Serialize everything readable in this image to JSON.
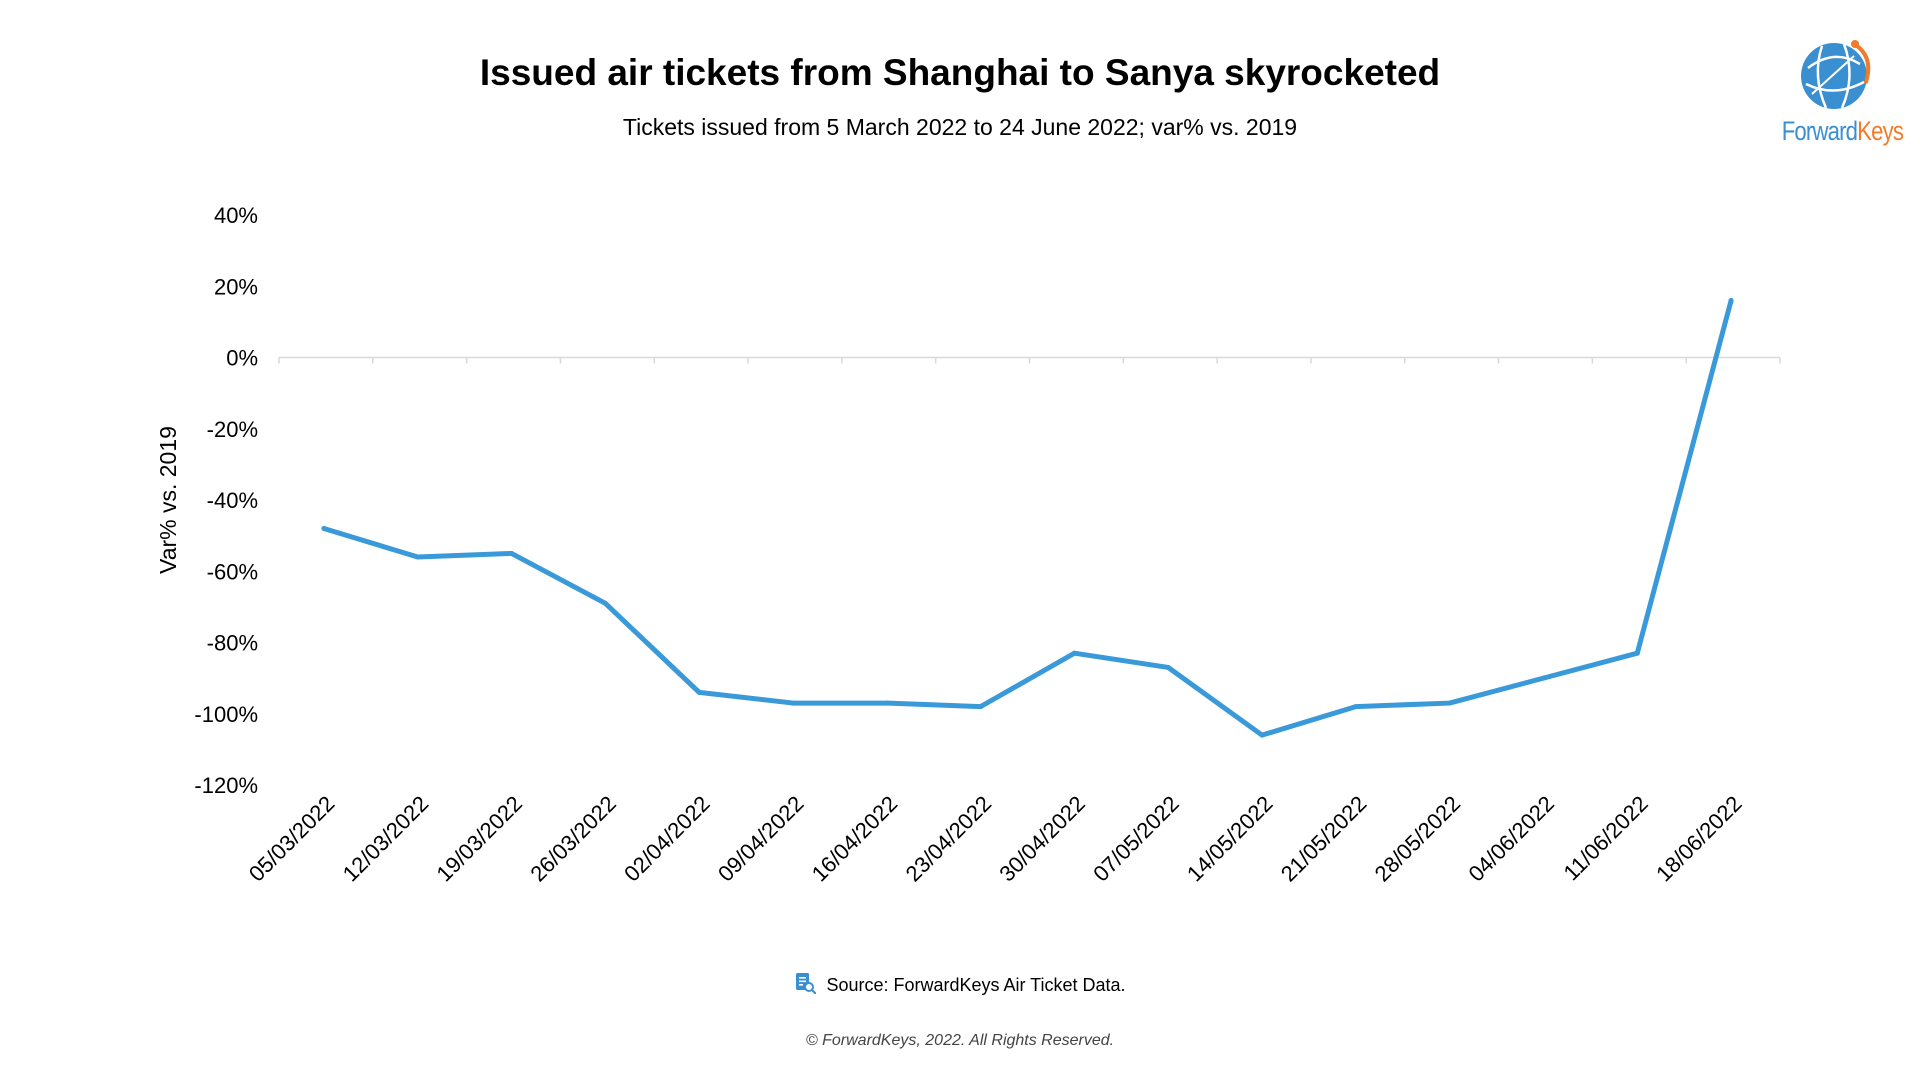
{
  "header": {
    "title": "Issued air tickets from Shanghai to Sanya skyrocketed",
    "subtitle": "Tickets issued from 5 March 2022 to 24 June 2022; var% vs. 2019"
  },
  "logo": {
    "text_part1": "Forward",
    "text_part2": "Keys",
    "icon": "globe-icon"
  },
  "footer": {
    "source": "Source: ForwardKeys Air Ticket Data.",
    "source_icon": "document-search-icon",
    "copyright": "© ForwardKeys, 2022. All Rights Reserved."
  },
  "colors": {
    "line": "#3a9ad9",
    "axis": "#d9d9d9",
    "brand_blue": "#3a8fd0",
    "brand_orange": "#f07b2a"
  },
  "chart_data": {
    "type": "line",
    "title": "Issued air tickets from Shanghai to Sanya skyrocketed",
    "subtitle": "Tickets issued from 5 March 2022 to 24 June 2022; var% vs. 2019",
    "xlabel": "",
    "ylabel": "Var% vs. 2019",
    "ylim": [
      -120,
      40
    ],
    "yticks": [
      40,
      20,
      0,
      -20,
      -40,
      -60,
      -80,
      -100,
      -120
    ],
    "ytick_labels": [
      "40%",
      "20%",
      "0%",
      "-20%",
      "-40%",
      "-60%",
      "-80%",
      "-100%",
      "-120%"
    ],
    "grid": false,
    "legend": "none",
    "categories": [
      "05/03/2022",
      "12/03/2022",
      "19/03/2022",
      "26/03/2022",
      "02/04/2022",
      "09/04/2022",
      "16/04/2022",
      "23/04/2022",
      "30/04/2022",
      "07/05/2022",
      "14/05/2022",
      "21/05/2022",
      "28/05/2022",
      "04/06/2022",
      "11/06/2022",
      "18/06/2022"
    ],
    "series": [
      {
        "values": [
          -48,
          -56,
          -55,
          -69,
          -94,
          -97,
          -97,
          -98,
          -83,
          -87,
          -106,
          -98,
          -97,
          -90,
          -83,
          16
        ]
      }
    ]
  }
}
